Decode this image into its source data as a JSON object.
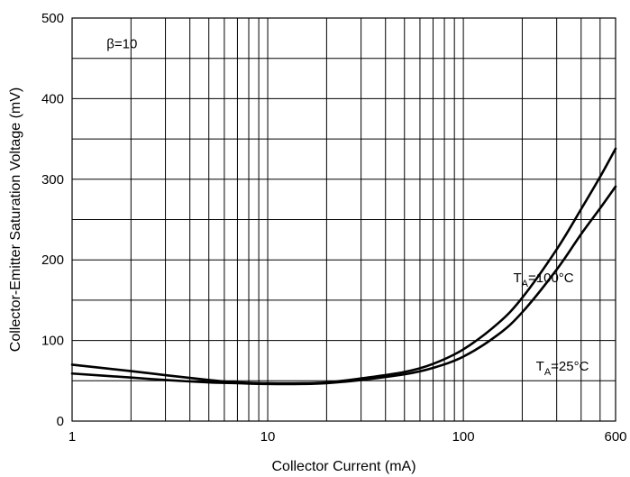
{
  "chart_data": {
    "type": "line",
    "xlabel": "Collector Current (mA)",
    "ylabel": "Collector-Emitter Saturation Voltage (mV)",
    "x_scale": "log",
    "xlim": [
      1,
      600
    ],
    "ylim": [
      0,
      500
    ],
    "x_ticks": [
      1,
      10,
      100,
      600
    ],
    "x_tick_labels": [
      "1",
      "10",
      "100",
      "600"
    ],
    "y_ticks": [
      0,
      100,
      200,
      300,
      400,
      500
    ],
    "y_tick_labels": [
      "0",
      "100",
      "200",
      "300",
      "400",
      "500"
    ],
    "grid": true,
    "y_minor_grid_step": 50,
    "series": [
      {
        "name": "TA=100°C",
        "x": [
          1,
          2,
          3,
          5,
          7,
          10,
          15,
          20,
          30,
          50,
          70,
          100,
          150,
          200,
          300,
          400,
          500,
          600
        ],
        "y": [
          70,
          62,
          57,
          51,
          48,
          47,
          47,
          48,
          53,
          61,
          71,
          89,
          121,
          153,
          213,
          263,
          303,
          338
        ]
      },
      {
        "name": "TA=25°C",
        "x": [
          1,
          2,
          3,
          5,
          7,
          10,
          15,
          20,
          30,
          50,
          70,
          100,
          150,
          200,
          300,
          400,
          500,
          600
        ],
        "y": [
          59,
          54,
          51,
          48,
          47,
          46,
          46,
          47,
          51,
          58,
          66,
          80,
          107,
          135,
          188,
          232,
          264,
          291
        ]
      }
    ],
    "annotations": [
      {
        "text": "β=10",
        "x": 1.5,
        "y": 468
      },
      {
        "main": "T",
        "sub": "A",
        "rest": "=100°C",
        "x": 180,
        "y": 178
      },
      {
        "main": "T",
        "sub": "A",
        "rest": "=25°C",
        "x": 235,
        "y": 68
      }
    ]
  }
}
